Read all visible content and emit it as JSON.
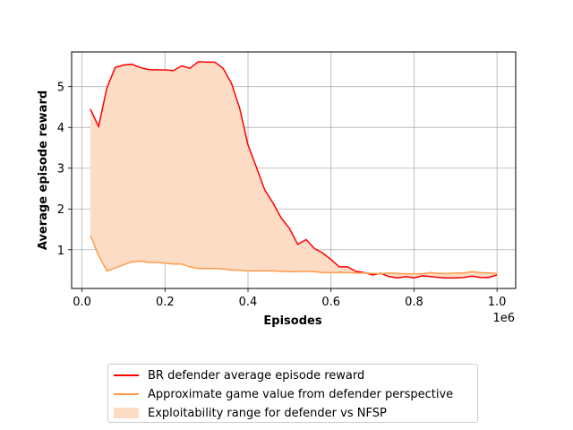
{
  "chart_data": {
    "type": "area",
    "xlabel": "Episodes",
    "ylabel": "Average episode reward",
    "x_offset_text": "1e6",
    "xlim": [
      -0.025,
      1.045
    ],
    "ylim": [
      0.05,
      5.85
    ],
    "x_ticks": [
      0.0,
      0.2,
      0.4,
      0.6,
      0.8,
      1.0
    ],
    "x_tick_labels": [
      "0.0",
      "0.2",
      "0.4",
      "0.6",
      "0.8",
      "1.0"
    ],
    "y_ticks": [
      1,
      2,
      3,
      4,
      5
    ],
    "y_tick_labels": [
      "1",
      "2",
      "3",
      "4",
      "5"
    ],
    "grid": true,
    "legend_position": "below",
    "x": [
      0.02,
      0.04,
      0.06,
      0.08,
      0.1,
      0.12,
      0.14,
      0.16,
      0.18,
      0.2,
      0.22,
      0.24,
      0.26,
      0.28,
      0.3,
      0.32,
      0.34,
      0.36,
      0.38,
      0.4,
      0.42,
      0.44,
      0.46,
      0.48,
      0.5,
      0.52,
      0.54,
      0.56,
      0.58,
      0.6,
      0.62,
      0.64,
      0.66,
      0.68,
      0.7,
      0.72,
      0.74,
      0.76,
      0.78,
      0.8,
      0.82,
      0.84,
      0.86,
      0.88,
      0.9,
      0.92,
      0.94,
      0.96,
      0.98,
      1.0
    ],
    "series": [
      {
        "name": "BR defender average episode reward",
        "color": "#ff0000",
        "values": [
          4.45,
          4.02,
          4.97,
          5.47,
          5.53,
          5.55,
          5.47,
          5.42,
          5.41,
          5.41,
          5.39,
          5.51,
          5.45,
          5.61,
          5.6,
          5.6,
          5.45,
          5.08,
          4.47,
          3.57,
          3.03,
          2.47,
          2.15,
          1.78,
          1.52,
          1.13,
          1.25,
          1.03,
          0.92,
          0.76,
          0.58,
          0.58,
          0.47,
          0.44,
          0.38,
          0.42,
          0.34,
          0.31,
          0.34,
          0.31,
          0.36,
          0.34,
          0.32,
          0.31,
          0.31,
          0.32,
          0.35,
          0.32,
          0.32,
          0.38
        ]
      },
      {
        "name": "Approximate game value from defender perspective",
        "color": "#ff9b4a",
        "values": [
          1.35,
          0.86,
          0.48,
          0.55,
          0.63,
          0.7,
          0.72,
          0.69,
          0.69,
          0.67,
          0.65,
          0.65,
          0.58,
          0.54,
          0.54,
          0.54,
          0.53,
          0.5,
          0.5,
          0.48,
          0.48,
          0.48,
          0.48,
          0.47,
          0.46,
          0.46,
          0.47,
          0.46,
          0.44,
          0.44,
          0.44,
          0.44,
          0.43,
          0.43,
          0.42,
          0.41,
          0.43,
          0.42,
          0.41,
          0.41,
          0.41,
          0.44,
          0.42,
          0.42,
          0.43,
          0.43,
          0.46,
          0.44,
          0.43,
          0.42
        ]
      }
    ],
    "fill": {
      "name": "Exploitability range for defender vs NFSP",
      "color": "#fddcc6",
      "between": [
        "BR defender average episode reward",
        "Approximate game value from defender perspective"
      ]
    }
  }
}
